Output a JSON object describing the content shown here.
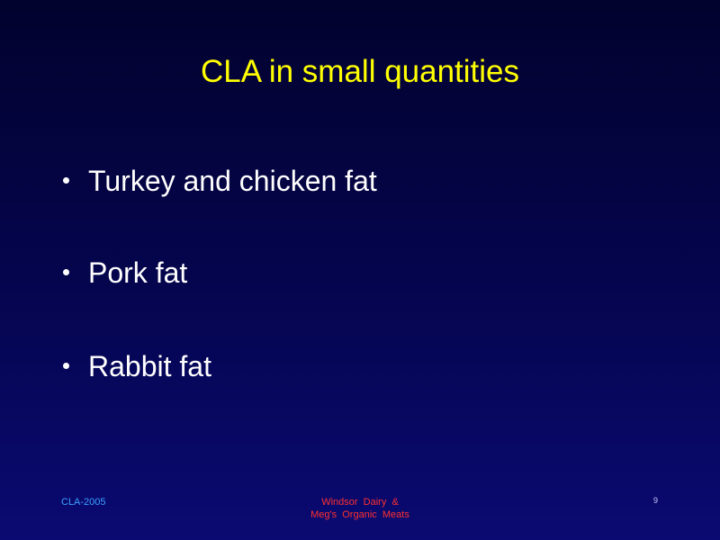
{
  "slide": {
    "title": "CLA in small quantities",
    "bullets": [
      "Turkey and chicken fat",
      "Pork fat",
      "Rabbit fat"
    ],
    "footer": {
      "left": "CLA-2005",
      "center": [
        "Windsor  Dairy  &",
        "Meg's  Organic  Meats"
      ],
      "page_number": "9"
    }
  }
}
